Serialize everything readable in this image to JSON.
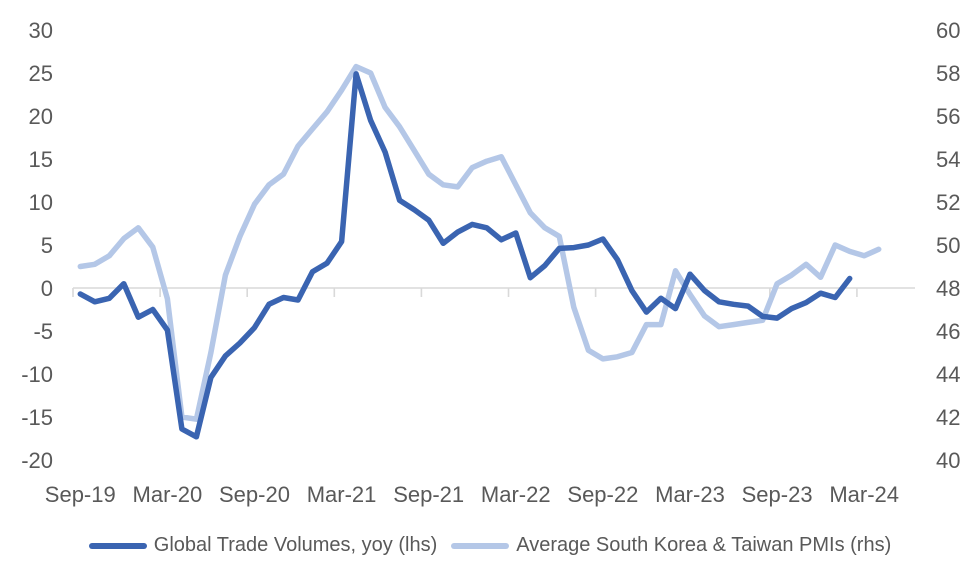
{
  "colors": {
    "trade_line": "#3A64B1",
    "pmi_line": "#B4C7E7",
    "axis_text": "#595959",
    "zero_line": "#D9D9D9",
    "background": "#FFFFFF"
  },
  "chart_data": {
    "type": "line",
    "title": "",
    "xlabel": "",
    "ylabel_left": "",
    "ylabel_right": "",
    "grid": "zero-line-only",
    "legend_position": "bottom-center",
    "x": [
      "Sep-19",
      "Oct-19",
      "Nov-19",
      "Dec-19",
      "Jan-20",
      "Feb-20",
      "Mar-20",
      "Apr-20",
      "May-20",
      "Jun-20",
      "Jul-20",
      "Aug-20",
      "Sep-20",
      "Oct-20",
      "Nov-20",
      "Dec-20",
      "Jan-21",
      "Feb-21",
      "Mar-21",
      "Apr-21",
      "May-21",
      "Jun-21",
      "Jul-21",
      "Aug-21",
      "Sep-21",
      "Oct-21",
      "Nov-21",
      "Dec-21",
      "Jan-22",
      "Feb-22",
      "Mar-22",
      "Apr-22",
      "May-22",
      "Jun-22",
      "Jul-22",
      "Aug-22",
      "Sep-22",
      "Oct-22",
      "Nov-22",
      "Dec-22",
      "Jan-23",
      "Feb-23",
      "Mar-23",
      "Apr-23",
      "May-23",
      "Jun-23",
      "Jul-23",
      "Aug-23",
      "Sep-23",
      "Oct-23",
      "Nov-23",
      "Dec-23",
      "Jan-24",
      "Feb-24",
      "Mar-24",
      "Apr-24"
    ],
    "x_tick_labels": [
      "Sep-19",
      "Mar-20",
      "Sep-20",
      "Mar-21",
      "Sep-21",
      "Mar-22",
      "Sep-22",
      "Mar-23",
      "Sep-23",
      "Mar-24"
    ],
    "left_axis": {
      "min": -20,
      "max": 30,
      "step": 5,
      "ticks": [
        30,
        25,
        20,
        15,
        10,
        5,
        0,
        -5,
        -10,
        -15,
        -20
      ]
    },
    "right_axis": {
      "min": 40,
      "max": 60,
      "step": 2,
      "ticks": [
        60,
        58,
        56,
        54,
        52,
        50,
        48,
        46,
        44,
        42,
        40
      ]
    },
    "series": [
      {
        "name": "Global Trade Volumes, yoy (lhs)",
        "axis": "left",
        "color": "#3A64B1",
        "values": [
          -0.7,
          -1.6,
          -1.2,
          0.5,
          -3.4,
          -2.5,
          -4.9,
          -16.4,
          -17.3,
          -10.4,
          -7.9,
          -6.4,
          -4.6,
          -1.9,
          -1.1,
          -1.4,
          1.9,
          2.9,
          5.4,
          24.9,
          19.5,
          15.8,
          10.2,
          9.1,
          7.9,
          5.2,
          6.5,
          7.4,
          7.0,
          5.6,
          6.4,
          1.2,
          2.6,
          4.6,
          4.7,
          5.0,
          5.7,
          3.3,
          -0.3,
          -2.8,
          -1.2,
          -2.4,
          1.6,
          -0.3,
          -1.6,
          -1.9,
          -2.1,
          -3.3,
          -3.5,
          -2.4,
          -1.7,
          -0.6,
          -1.1,
          1.1,
          null,
          null
        ]
      },
      {
        "name": "Average South Korea & Taiwan PMIs (rhs)",
        "axis": "right",
        "color": "#B4C7E7",
        "values": [
          49.0,
          49.1,
          49.5,
          50.3,
          50.8,
          49.9,
          47.5,
          42.0,
          41.9,
          45.0,
          48.6,
          50.4,
          51.9,
          52.8,
          53.3,
          54.6,
          55.4,
          56.2,
          57.2,
          58.3,
          58.0,
          56.4,
          55.5,
          54.4,
          53.3,
          52.8,
          52.7,
          53.6,
          53.9,
          54.1,
          52.8,
          51.5,
          50.8,
          50.4,
          47.1,
          45.1,
          44.7,
          44.8,
          45.0,
          46.3,
          46.3,
          48.8,
          47.7,
          46.7,
          46.2,
          46.3,
          46.4,
          46.5,
          48.2,
          48.6,
          49.1,
          48.5,
          50.0,
          49.7,
          49.5,
          49.8
        ]
      }
    ]
  }
}
